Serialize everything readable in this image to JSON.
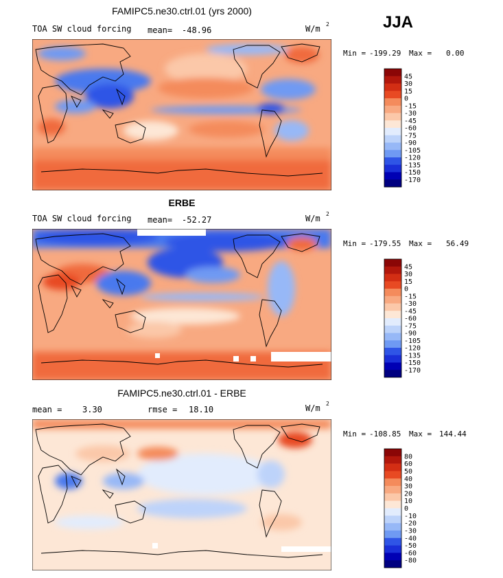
{
  "season": "JJA",
  "units_label": "W/m",
  "units_exponent": "2",
  "colors": {
    "bar_colors": [
      "#000080",
      "#0000b4",
      "#1a2fd8",
      "#2f55e6",
      "#4a79ee",
      "#6f9af3",
      "#97b8f7",
      "#bdd3fa",
      "#e2ecfd",
      "#fde7d6",
      "#fbc8a9",
      "#f8a981",
      "#f48b5c",
      "#f06a3e",
      "#e84a23",
      "#d32e14",
      "#b2170c",
      "#8b0606"
    ],
    "base_field": "#f8a981",
    "ocean_band": "#f48b5c",
    "land_line": "#000000"
  },
  "panels": [
    {
      "title": "FAMIPC5.ne30.ctrl.01 (yrs 2000)",
      "left_label": "TOA SW cloud forcing",
      "mean_label": "mean=",
      "mean_value": "-48.96",
      "min_label": "Min =",
      "min_value": "-199.29",
      "max_label": "Max =",
      "max_value": "0.00",
      "colorbar_levels": [
        "45",
        "30",
        "15",
        "0",
        "-15",
        "-30",
        "-45",
        "-60",
        "-75",
        "-90",
        "-105",
        "-120",
        "-135",
        "-150",
        "-170"
      ]
    },
    {
      "title": "ERBE",
      "left_label": "TOA SW cloud forcing",
      "mean_label": "mean=",
      "mean_value": "-52.27",
      "min_label": "Min =",
      "min_value": "-179.55",
      "max_label": "Max =",
      "max_value": "56.49",
      "colorbar_levels": [
        "45",
        "30",
        "15",
        "0",
        "-15",
        "-30",
        "-45",
        "-60",
        "-75",
        "-90",
        "-105",
        "-120",
        "-135",
        "-150",
        "-170"
      ]
    },
    {
      "title": "FAMIPC5.ne30.ctrl.01 - ERBE",
      "left_label": "mean =",
      "left_value": "3.30",
      "rmse_label": "rmse =",
      "rmse_value": "18.10",
      "min_label": "Min =",
      "min_value": "-108.85",
      "max_label": "Max =",
      "max_value": "144.44",
      "colorbar_levels": [
        "80",
        "60",
        "50",
        "40",
        "30",
        "20",
        "10",
        "0",
        "-10",
        "-20",
        "-30",
        "-40",
        "-50",
        "-60",
        "-80"
      ]
    }
  ],
  "chart_data": [
    {
      "type": "heatmap",
      "title": "FAMIPC5.ne30.ctrl.01 (yrs 2000)",
      "variable": "TOA SW cloud forcing",
      "units": "W/m2",
      "mean": -48.96,
      "min": -199.29,
      "max": 0.0,
      "levels": [
        45,
        30,
        15,
        0,
        -15,
        -30,
        -45,
        -60,
        -75,
        -90,
        -105,
        -120,
        -135,
        -150,
        -170
      ]
    },
    {
      "type": "heatmap",
      "title": "ERBE",
      "variable": "TOA SW cloud forcing",
      "units": "W/m2",
      "mean": -52.27,
      "min": -179.55,
      "max": 56.49,
      "levels": [
        45,
        30,
        15,
        0,
        -15,
        -30,
        -45,
        -60,
        -75,
        -90,
        -105,
        -120,
        -135,
        -150,
        -170
      ]
    },
    {
      "type": "heatmap",
      "title": "FAMIPC5.ne30.ctrl.01 - ERBE",
      "variable": "difference",
      "units": "W/m2",
      "mean": 3.3,
      "rmse": 18.1,
      "min": -108.85,
      "max": 144.44,
      "levels": [
        80,
        60,
        50,
        40,
        30,
        20,
        10,
        0,
        -10,
        -20,
        -30,
        -40,
        -50,
        -60,
        -80
      ]
    }
  ]
}
